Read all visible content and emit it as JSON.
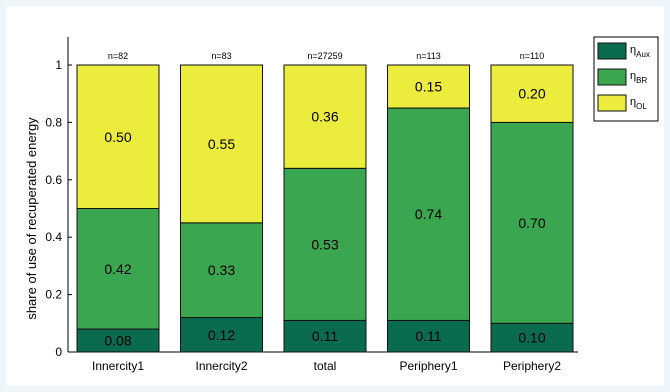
{
  "chart_data": {
    "type": "bar",
    "stacked": true,
    "categories": [
      "Innercity1",
      "Innercity2",
      "total",
      "Periphery1",
      "Periphery2"
    ],
    "n_labels": [
      "n=82",
      "n=83",
      "n=27259",
      "n=113",
      "n=110"
    ],
    "series": [
      {
        "name": "η_Aux",
        "symbol": "η",
        "subscript": "Aux",
        "color": "#0b6b4e",
        "values": [
          0.08,
          0.12,
          0.11,
          0.11,
          0.1
        ],
        "labels": [
          "0.08",
          "0.12",
          "0.11",
          "0.11",
          "0.10"
        ]
      },
      {
        "name": "η_BR",
        "symbol": "η",
        "subscript": "BR",
        "color": "#3aa64f",
        "values": [
          0.42,
          0.33,
          0.53,
          0.74,
          0.7
        ],
        "labels": [
          "0.42",
          "0.33",
          "0.53",
          "0.74",
          "0.70"
        ]
      },
      {
        "name": "η_OL",
        "symbol": "η",
        "subscript": "OL",
        "color": "#ecec3c",
        "values": [
          0.5,
          0.55,
          0.36,
          0.15,
          0.2
        ],
        "labels": [
          "0.50",
          "0.55",
          "0.36",
          "0.15",
          "0.20"
        ]
      }
    ],
    "ylabel": "share of use of recuperated energy",
    "ylim": [
      0,
      1
    ],
    "yticks": [
      "0",
      "0.2",
      "0.4",
      "0.6",
      "0.8",
      "1"
    ],
    "legend_position": "top-right"
  }
}
